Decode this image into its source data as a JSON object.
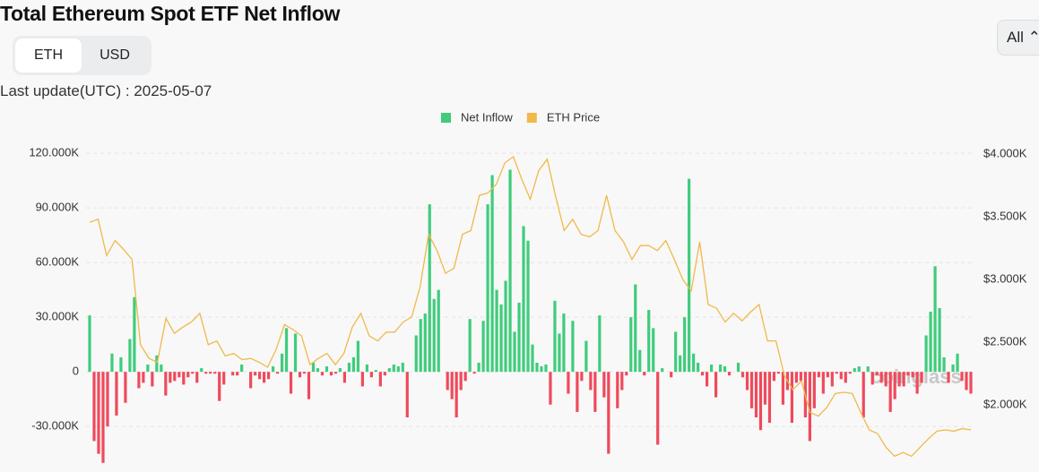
{
  "header": {
    "title": "Total Ethereum Spot ETF Net Inflow",
    "toggle": [
      "ETH",
      "USD"
    ],
    "last_update": "Last update(UTC) : 2025-05-07",
    "range": "All"
  },
  "watermark": "coinglass",
  "chart_data": {
    "type": "bar",
    "ylim": [
      -55000,
      125000
    ],
    "yticks": [
      {
        "value": -30000,
        "label": "-30.000K"
      },
      0,
      {
        "value": 30000,
        "label": "30.000K"
      },
      {
        "value": 60000,
        "label": "60.000K"
      },
      {
        "value": 90000,
        "label": "90.000K"
      },
      {
        "value": 120000,
        "label": "120.000K"
      }
    ],
    "y2lim": [
      1464,
      4079
    ],
    "y2ticks": [
      {
        "value": 2000,
        "label": "$2.000K"
      },
      {
        "value": 2500,
        "label": "$2.500K"
      },
      {
        "value": 3000,
        "label": "$3.000K"
      },
      {
        "value": 3500,
        "label": "$3.500K"
      },
      {
        "value": 4000,
        "label": "$4.000K"
      }
    ],
    "grid": true,
    "legend": "top",
    "series": [
      {
        "name": "Net Inflow",
        "type": "bar",
        "color": "#3fcc7c",
        "negative_color": "#ef4a5b",
        "values": [
          31000,
          -38000,
          -45000,
          -50000,
          -30000,
          10000,
          -24000,
          8000,
          -17000,
          18000,
          41000,
          -9000,
          -6000,
          4000,
          -8000,
          9000,
          4000,
          -13000,
          -6000,
          -5000,
          -3000,
          -7000,
          -3000,
          -1000,
          -6000,
          2000,
          -1000,
          -1000,
          -1000,
          -16000,
          -7000,
          0,
          -2000,
          -2000,
          4000,
          0,
          -9000,
          -2000,
          -4000,
          -6000,
          -4000,
          3000,
          -1000,
          10000,
          24000,
          -12000,
          21000,
          -3000,
          -1000,
          -15000,
          5000,
          2000,
          -2000,
          3000,
          -2000,
          -1000,
          2000,
          -6000,
          5000,
          8000,
          17000,
          -8000,
          4000,
          -3000,
          1000,
          -8000,
          -2000,
          2000,
          4000,
          3000,
          5000,
          -25000,
          0,
          20000,
          29000,
          32000,
          92000,
          40000,
          45000,
          0,
          -10000,
          -15000,
          -25000,
          -10000,
          -5000,
          29000,
          -1000,
          5000,
          28000,
          92000,
          108000,
          45000,
          37000,
          50000,
          111000,
          22000,
          38000,
          80000,
          72000,
          15000,
          5000,
          3000,
          4000,
          -18000,
          39000,
          21000,
          32000,
          -12000,
          28000,
          -22000,
          -5000,
          17000,
          -10000,
          -22000,
          31000,
          -14000,
          -45000,
          0,
          -20000,
          -10000,
          -2000,
          30000,
          48000,
          12000,
          -2000,
          34000,
          24000,
          -40000,
          2000,
          0,
          -3000,
          22000,
          9000,
          30000,
          106000,
          10000,
          5000,
          -2000,
          -8000,
          4000,
          -14000,
          4000,
          3000,
          -2000,
          0,
          5000,
          -3000,
          -10000,
          -20000,
          -25000,
          -32000,
          -18000,
          -28000,
          -5000,
          -1000,
          -18000,
          -10000,
          -28000,
          -6000,
          -5000,
          -25000,
          -38000,
          -20000,
          -3000,
          -12000,
          -3000,
          -8000,
          -1000,
          -4000,
          -6000,
          -1000,
          2000,
          3000,
          -25000,
          3000,
          -7000,
          -2000,
          -6000,
          -8000,
          -22000,
          -15000,
          -8000,
          -8000,
          -2000,
          -3000,
          -12000,
          -6000,
          20000,
          33000,
          58000,
          35000,
          8000,
          -6000,
          4000,
          10000,
          -5000,
          -10000,
          -12000
        ]
      },
      {
        "name": "ETH Price",
        "type": "line",
        "axis": "y2",
        "color": "#f0b94a",
        "values": [
          3457,
          3480,
          3190,
          3310,
          3240,
          3160,
          2480,
          2370,
          2340,
          2690,
          2570,
          2620,
          2660,
          2730,
          2480,
          2510,
          2390,
          2410,
          2360,
          2370,
          2340,
          2300,
          2440,
          2640,
          2600,
          2550,
          2320,
          2370,
          2410,
          2320,
          2410,
          2620,
          2730,
          2550,
          2510,
          2580,
          2580,
          2660,
          2700,
          2940,
          3360,
          3230,
          3050,
          3090,
          3360,
          3390,
          3670,
          3690,
          3760,
          3930,
          3980,
          3800,
          3640,
          3870,
          3960,
          3660,
          3390,
          3480,
          3360,
          3340,
          3390,
          3670,
          3390,
          3300,
          3160,
          3270,
          3270,
          3230,
          3310,
          3160,
          3000,
          2910,
          3300,
          2800,
          2770,
          2660,
          2730,
          2670,
          2740,
          2800,
          2510,
          2510,
          2230,
          2120,
          2190,
          1940,
          1910,
          1980,
          2090,
          2100,
          2090,
          1940,
          1800,
          1770,
          1660,
          1590,
          1620,
          1590,
          1660,
          1730,
          1790,
          1800,
          1790,
          1810,
          1800
        ]
      }
    ]
  }
}
